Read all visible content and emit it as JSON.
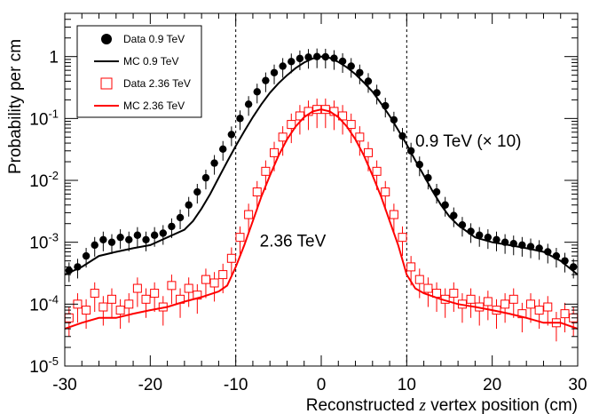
{
  "chart_data": {
    "type": "scatter",
    "title": "",
    "xlabel": "Reconstructed z vertex position (cm)",
    "xlabel_parts": {
      "before": "Reconstructed ",
      "italic": "z",
      "after": " vertex position (cm)"
    },
    "ylabel": "Probability per cm",
    "xlim": [
      -30,
      30
    ],
    "ylim": [
      1e-05,
      5
    ],
    "y_scale": "log",
    "grid": false,
    "legend_position": "top-left",
    "x_ticks": [
      -30,
      -20,
      -10,
      0,
      10,
      20,
      30
    ],
    "x_tick_labels": [
      "-30",
      "-20",
      "-10",
      "0",
      "10",
      "20",
      "30"
    ],
    "y_ticks": [
      1e-05,
      0.0001,
      0.001,
      0.01,
      0.1,
      1
    ],
    "y_tick_labels": [
      {
        "base": "10",
        "exp": "-5"
      },
      {
        "base": "10",
        "exp": "-4"
      },
      {
        "base": "10",
        "exp": "-3"
      },
      {
        "base": "10",
        "exp": "-2"
      },
      {
        "base": "10",
        "exp": "-1"
      },
      {
        "base": "1",
        "exp": ""
      }
    ],
    "vertical_lines": [
      -10,
      10
    ],
    "annotations": [
      {
        "text": "0.9 TeV (× 10)",
        "x": 11,
        "y": 0.035
      },
      {
        "text": "2.36 TeV",
        "x": -7.2,
        "y": 0.00085
      }
    ],
    "series": [
      {
        "name": "Data 0.9 TeV",
        "kind": "data",
        "marker": "filled-circle",
        "color": "#000000",
        "x": [
          -29.5,
          -28.5,
          -27.5,
          -26.5,
          -25.5,
          -24.5,
          -23.5,
          -22.5,
          -21.5,
          -20.5,
          -19.5,
          -18.5,
          -17.5,
          -16.5,
          -15.5,
          -14.5,
          -13.5,
          -12.5,
          -11.5,
          -10.5,
          -9.5,
          -8.5,
          -7.5,
          -6.5,
          -5.5,
          -4.5,
          -3.5,
          -2.5,
          -1.5,
          -0.5,
          0.5,
          1.5,
          2.5,
          3.5,
          4.5,
          5.5,
          6.5,
          7.5,
          8.5,
          9.5,
          10.5,
          11.5,
          12.5,
          13.5,
          14.5,
          15.5,
          16.5,
          17.5,
          18.5,
          19.5,
          20.5,
          21.5,
          22.5,
          23.5,
          24.5,
          25.5,
          26.5,
          27.5,
          28.5,
          29.5
        ],
        "y": [
          0.00035,
          0.0004,
          0.0006,
          0.0009,
          0.0011,
          0.001,
          0.0012,
          0.0011,
          0.0013,
          0.0011,
          0.0013,
          0.0014,
          0.0018,
          0.0025,
          0.004,
          0.0065,
          0.011,
          0.019,
          0.032,
          0.055,
          0.1,
          0.17,
          0.27,
          0.41,
          0.55,
          0.7,
          0.83,
          0.93,
          0.98,
          1.0,
          0.99,
          0.94,
          0.84,
          0.7,
          0.55,
          0.4,
          0.26,
          0.16,
          0.095,
          0.052,
          0.03,
          0.018,
          0.011,
          0.0065,
          0.004,
          0.0027,
          0.0019,
          0.0015,
          0.0013,
          0.0012,
          0.0011,
          0.001,
          0.00095,
          0.0009,
          0.00085,
          0.0008,
          0.0007,
          0.0006,
          0.0005,
          0.0004
        ],
        "yerr_rel": 0.35
      },
      {
        "name": "MC 0.9 TeV",
        "kind": "line",
        "color": "#000000",
        "x": [
          -30,
          -28,
          -26,
          -24,
          -22,
          -20,
          -18,
          -16,
          -15,
          -14,
          -13,
          -12,
          -11,
          -10,
          -9,
          -8,
          -7,
          -6,
          -5,
          -4,
          -3,
          -2,
          -1,
          0,
          1,
          2,
          3,
          4,
          5,
          6,
          7,
          8,
          9,
          10,
          11,
          12,
          13,
          14,
          15,
          16,
          18,
          20,
          22,
          24,
          26,
          28,
          30
        ],
        "y": [
          0.0003,
          0.0004,
          0.0006,
          0.0007,
          0.0008,
          0.0009,
          0.0012,
          0.0016,
          0.0022,
          0.0035,
          0.006,
          0.011,
          0.02,
          0.036,
          0.062,
          0.105,
          0.17,
          0.26,
          0.37,
          0.5,
          0.65,
          0.8,
          0.93,
          1.0,
          0.95,
          0.82,
          0.67,
          0.52,
          0.38,
          0.27,
          0.175,
          0.11,
          0.065,
          0.038,
          0.021,
          0.012,
          0.0068,
          0.004,
          0.0026,
          0.0019,
          0.0012,
          0.001,
          0.0009,
          0.0008,
          0.0007,
          0.0005,
          0.0003
        ]
      },
      {
        "name": "Data 2.36 TeV",
        "kind": "data",
        "marker": "open-square",
        "color": "#ff0000",
        "x": [
          -29.5,
          -28.5,
          -27.5,
          -26.5,
          -25.5,
          -24.5,
          -23.5,
          -22.5,
          -21.5,
          -20.5,
          -19.5,
          -18.5,
          -17.5,
          -16.5,
          -15.5,
          -14.5,
          -13.5,
          -12.5,
          -11.5,
          -10.5,
          -9.5,
          -8.5,
          -7.5,
          -6.5,
          -5.5,
          -4.5,
          -3.5,
          -2.5,
          -1.5,
          -0.5,
          0.5,
          1.5,
          2.5,
          3.5,
          4.5,
          5.5,
          6.5,
          7.5,
          8.5,
          9.5,
          10.5,
          11.5,
          12.5,
          13.5,
          14.5,
          15.5,
          16.5,
          17.5,
          18.5,
          19.5,
          20.5,
          21.5,
          22.5,
          23.5,
          24.5,
          25.5,
          26.5,
          27.5,
          28.5,
          29.5
        ],
        "y": [
          6e-05,
          0.0001,
          8e-05,
          0.00015,
          9e-05,
          0.00012,
          8e-05,
          0.0001,
          0.00018,
          0.00012,
          0.00015,
          9e-05,
          0.0002,
          0.00012,
          0.00018,
          0.00014,
          0.00025,
          0.00022,
          0.0003,
          0.00055,
          0.0012,
          0.0028,
          0.0065,
          0.014,
          0.028,
          0.05,
          0.08,
          0.11,
          0.13,
          0.14,
          0.14,
          0.13,
          0.11,
          0.08,
          0.05,
          0.028,
          0.014,
          0.0065,
          0.0028,
          0.0012,
          0.0004,
          0.00025,
          0.00018,
          0.00015,
          0.00012,
          0.00015,
          0.0001,
          0.00012,
          9e-05,
          0.00011,
          8e-05,
          0.0001,
          0.00012,
          7e-05,
          0.0001,
          8e-05,
          9e-05,
          5e-05,
          7e-05,
          6e-05
        ],
        "yerr_rel": 0.5
      },
      {
        "name": "MC 2.36 TeV",
        "kind": "line",
        "color": "#ff0000",
        "x": [
          -30,
          -28,
          -26,
          -24,
          -22,
          -20,
          -18,
          -16,
          -14,
          -12,
          -11,
          -10,
          -9,
          -8,
          -7,
          -6,
          -5,
          -4,
          -3,
          -2,
          -1,
          0,
          1,
          2,
          3,
          4,
          5,
          6,
          7,
          8,
          9,
          10,
          11,
          12,
          14,
          16,
          18,
          20,
          22,
          24,
          26,
          28,
          30
        ],
        "y": [
          4e-05,
          5e-05,
          6e-05,
          6e-05,
          7e-05,
          8e-05,
          9e-05,
          0.00011,
          0.00013,
          0.00016,
          0.0002,
          0.0004,
          0.0009,
          0.0022,
          0.0055,
          0.012,
          0.025,
          0.046,
          0.074,
          0.105,
          0.13,
          0.14,
          0.13,
          0.105,
          0.074,
          0.046,
          0.025,
          0.012,
          0.0055,
          0.0022,
          0.0009,
          0.0003,
          0.00018,
          0.00015,
          0.00012,
          0.0001,
          9e-05,
          8e-05,
          7e-05,
          6e-05,
          5e-05,
          5e-05,
          4e-05
        ]
      }
    ]
  }
}
